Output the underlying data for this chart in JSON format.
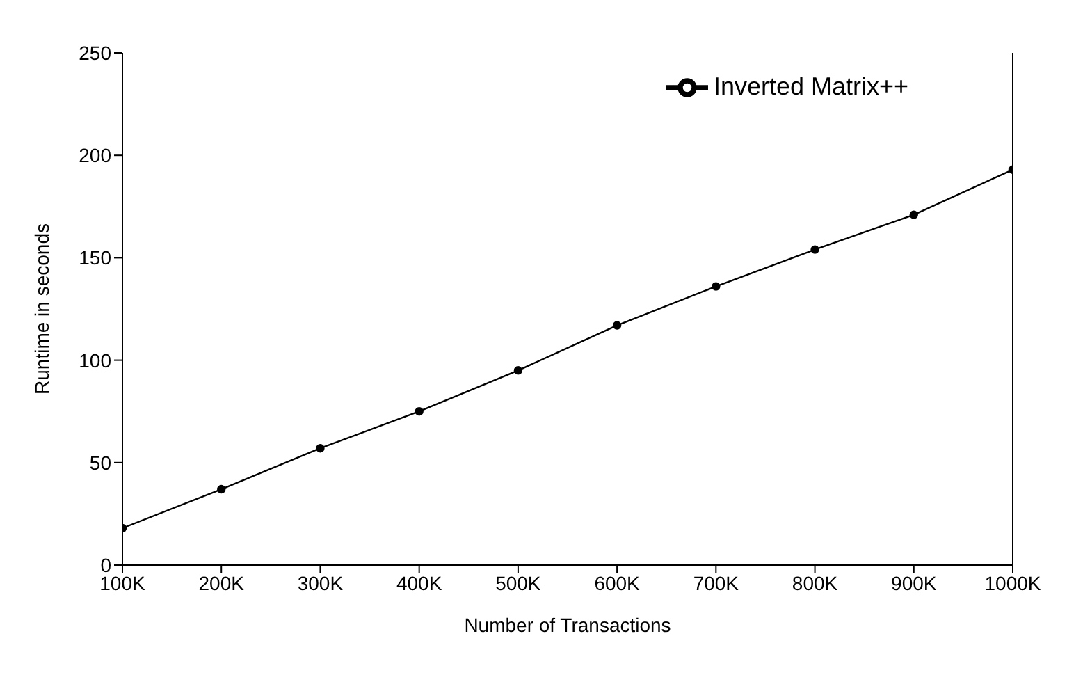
{
  "chart_data": {
    "type": "line",
    "xlabel": "Number of Transactions",
    "ylabel": "Runtime in seconds",
    "categories": [
      "100K",
      "200K",
      "300K",
      "400K",
      "500K",
      "600K",
      "700K",
      "800K",
      "900K",
      "1000K"
    ],
    "series": [
      {
        "name": "Inverted Matrix++",
        "color": "#000000",
        "values": [
          18,
          37,
          57,
          75,
          95,
          117,
          136,
          154,
          171,
          193
        ]
      }
    ],
    "ylim": [
      0,
      250
    ],
    "yticks": [
      0,
      50,
      100,
      150,
      200,
      250
    ],
    "grid": false,
    "legend": "top right",
    "marker": "circle",
    "line_style": "solid"
  }
}
